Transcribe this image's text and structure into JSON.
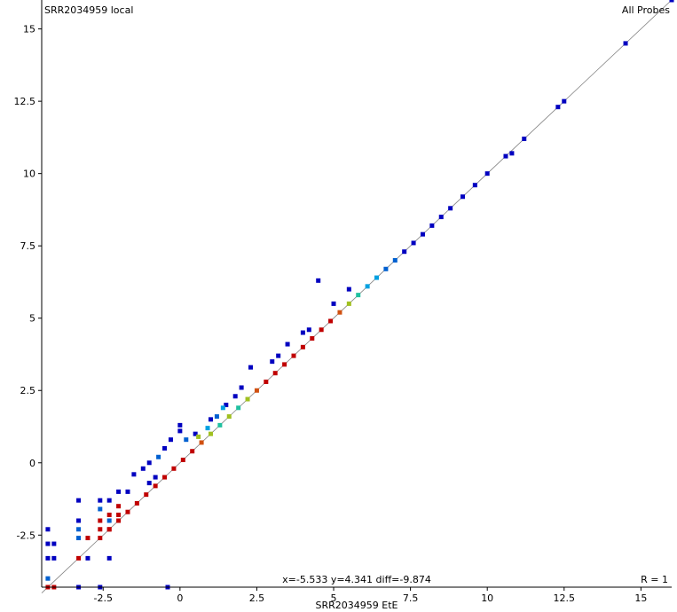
{
  "chart_data": {
    "type": "scatter",
    "title": "",
    "ylabel": "SRR2034959 local",
    "xlabel": "SRR2034959 EtE",
    "series_label": "All Probes",
    "r_label": "R = 1",
    "cursor_readout": "x=-5.533 y=4.341 diff=-9.874",
    "xlim": [
      -4.5,
      16
    ],
    "ylim": [
      -4.3,
      16
    ],
    "xticks": [
      -2.5,
      0,
      2.5,
      5,
      7.5,
      10,
      12.5,
      15
    ],
    "yticks": [
      -2.5,
      0,
      2.5,
      5,
      7.5,
      10,
      12.5,
      15
    ],
    "xtick_labels": [
      "-2.5",
      "0",
      "2.5",
      "5",
      "7.5",
      "10",
      "12.5",
      "15"
    ],
    "ytick_labels": [
      "-2.5",
      "0",
      "2.5",
      "5",
      "7.5",
      "10",
      "12.5",
      "15"
    ],
    "diagonal": [
      [
        -4.5,
        -4.5
      ],
      [
        16,
        16
      ]
    ],
    "density_colors": [
      "#0000c0",
      "#0060d0",
      "#00a0e0",
      "#20c0a0",
      "#a0c020",
      "#d05010",
      "#c00000"
    ],
    "points": [
      {
        "x": 16.0,
        "y": 16.0,
        "d": 0
      },
      {
        "x": 14.5,
        "y": 14.5,
        "d": 0
      },
      {
        "x": 12.5,
        "y": 12.5,
        "d": 0
      },
      {
        "x": 12.3,
        "y": 12.3,
        "d": 0
      },
      {
        "x": 11.2,
        "y": 11.2,
        "d": 0
      },
      {
        "x": 10.8,
        "y": 10.7,
        "d": 0
      },
      {
        "x": 10.6,
        "y": 10.6,
        "d": 0
      },
      {
        "x": 10.0,
        "y": 10.0,
        "d": 0
      },
      {
        "x": 9.6,
        "y": 9.6,
        "d": 0
      },
      {
        "x": 9.2,
        "y": 9.2,
        "d": 0
      },
      {
        "x": 8.8,
        "y": 8.8,
        "d": 0
      },
      {
        "x": 8.5,
        "y": 8.5,
        "d": 0
      },
      {
        "x": 8.2,
        "y": 8.2,
        "d": 0
      },
      {
        "x": 7.9,
        "y": 7.9,
        "d": 0
      },
      {
        "x": 7.6,
        "y": 7.6,
        "d": 0
      },
      {
        "x": 7.3,
        "y": 7.3,
        "d": 0
      },
      {
        "x": 7.0,
        "y": 7.0,
        "d": 1
      },
      {
        "x": 6.7,
        "y": 6.7,
        "d": 1
      },
      {
        "x": 6.4,
        "y": 6.4,
        "d": 2
      },
      {
        "x": 6.1,
        "y": 6.1,
        "d": 2
      },
      {
        "x": 5.8,
        "y": 5.8,
        "d": 3
      },
      {
        "x": 5.5,
        "y": 5.5,
        "d": 4
      },
      {
        "x": 5.2,
        "y": 5.2,
        "d": 5
      },
      {
        "x": 4.9,
        "y": 4.9,
        "d": 6
      },
      {
        "x": 4.6,
        "y": 4.6,
        "d": 6
      },
      {
        "x": 4.3,
        "y": 4.3,
        "d": 6
      },
      {
        "x": 4.0,
        "y": 4.0,
        "d": 6
      },
      {
        "x": 3.7,
        "y": 3.7,
        "d": 6
      },
      {
        "x": 3.4,
        "y": 3.4,
        "d": 6
      },
      {
        "x": 3.1,
        "y": 3.1,
        "d": 6
      },
      {
        "x": 2.8,
        "y": 2.8,
        "d": 6
      },
      {
        "x": 2.5,
        "y": 2.5,
        "d": 5
      },
      {
        "x": 2.2,
        "y": 2.2,
        "d": 4
      },
      {
        "x": 1.9,
        "y": 1.9,
        "d": 3
      },
      {
        "x": 1.6,
        "y": 1.6,
        "d": 4
      },
      {
        "x": 1.3,
        "y": 1.3,
        "d": 3
      },
      {
        "x": 1.0,
        "y": 1.0,
        "d": 4
      },
      {
        "x": 0.7,
        "y": 0.7,
        "d": 5
      },
      {
        "x": 0.4,
        "y": 0.4,
        "d": 6
      },
      {
        "x": 0.1,
        "y": 0.1,
        "d": 6
      },
      {
        "x": -0.2,
        "y": -0.2,
        "d": 6
      },
      {
        "x": -0.5,
        "y": -0.5,
        "d": 6
      },
      {
        "x": -0.8,
        "y": -0.8,
        "d": 6
      },
      {
        "x": -1.1,
        "y": -1.1,
        "d": 6
      },
      {
        "x": -1.4,
        "y": -1.4,
        "d": 6
      },
      {
        "x": -1.7,
        "y": -1.7,
        "d": 6
      },
      {
        "x": -2.0,
        "y": -2.0,
        "d": 6
      },
      {
        "x": -2.3,
        "y": -2.3,
        "d": 6
      },
      {
        "x": -3.3,
        "y": -3.3,
        "d": 6
      },
      {
        "x": -4.3,
        "y": -4.3,
        "d": 6
      },
      {
        "x": 4.5,
        "y": 6.3,
        "d": 0
      },
      {
        "x": 2.3,
        "y": 3.3,
        "d": 0
      },
      {
        "x": 5.0,
        "y": 5.5,
        "d": 0
      },
      {
        "x": 3.5,
        "y": 4.1,
        "d": 0
      },
      {
        "x": 4.0,
        "y": 4.5,
        "d": 0
      },
      {
        "x": 1.0,
        "y": 1.5,
        "d": 0
      },
      {
        "x": 1.5,
        "y": 2.0,
        "d": 0
      },
      {
        "x": 2.0,
        "y": 2.6,
        "d": 0
      },
      {
        "x": 3.0,
        "y": 3.5,
        "d": 0
      },
      {
        "x": 5.5,
        "y": 6.0,
        "d": 0
      },
      {
        "x": 0.0,
        "y": 1.3,
        "d": 0
      },
      {
        "x": 0.5,
        "y": 1.0,
        "d": 0
      },
      {
        "x": -0.5,
        "y": 0.5,
        "d": 0
      },
      {
        "x": -0.3,
        "y": 0.8,
        "d": 0
      },
      {
        "x": -1.0,
        "y": 0.0,
        "d": 0
      },
      {
        "x": -1.2,
        "y": -0.2,
        "d": 0
      },
      {
        "x": -0.7,
        "y": 0.2,
        "d": 1
      },
      {
        "x": 0.2,
        "y": 0.8,
        "d": 1
      },
      {
        "x": -1.5,
        "y": -0.4,
        "d": 0
      },
      {
        "x": -1.7,
        "y": -1.0,
        "d": 0
      },
      {
        "x": -2.0,
        "y": -1.0,
        "d": 0
      },
      {
        "x": -2.0,
        "y": -1.5,
        "d": 6
      },
      {
        "x": -2.0,
        "y": -1.8,
        "d": 6
      },
      {
        "x": -2.3,
        "y": -1.8,
        "d": 6
      },
      {
        "x": -2.3,
        "y": -1.3,
        "d": 0
      },
      {
        "x": -2.3,
        "y": -2.0,
        "d": 1
      },
      {
        "x": -2.3,
        "y": -2.3,
        "d": 6
      },
      {
        "x": -2.3,
        "y": -3.3,
        "d": 0
      },
      {
        "x": -2.6,
        "y": -1.3,
        "d": 0
      },
      {
        "x": -2.6,
        "y": -1.6,
        "d": 1
      },
      {
        "x": -2.6,
        "y": -2.0,
        "d": 6
      },
      {
        "x": -2.6,
        "y": -2.3,
        "d": 6
      },
      {
        "x": -2.6,
        "y": -2.6,
        "d": 6
      },
      {
        "x": -2.6,
        "y": -4.3,
        "d": 0
      },
      {
        "x": -3.3,
        "y": -1.3,
        "d": 0
      },
      {
        "x": -3.3,
        "y": -2.0,
        "d": 0
      },
      {
        "x": -3.3,
        "y": -2.3,
        "d": 1
      },
      {
        "x": -3.3,
        "y": -2.6,
        "d": 1
      },
      {
        "x": -3.3,
        "y": -4.3,
        "d": 0
      },
      {
        "x": -3.0,
        "y": -2.6,
        "d": 6
      },
      {
        "x": -3.0,
        "y": -3.3,
        "d": 0
      },
      {
        "x": -4.3,
        "y": -2.3,
        "d": 0
      },
      {
        "x": -4.3,
        "y": -2.8,
        "d": 0
      },
      {
        "x": -4.3,
        "y": -3.3,
        "d": 0
      },
      {
        "x": -4.3,
        "y": -4.0,
        "d": 1
      },
      {
        "x": -4.1,
        "y": -2.8,
        "d": 0
      },
      {
        "x": -4.1,
        "y": -3.3,
        "d": 0
      },
      {
        "x": -4.1,
        "y": -4.3,
        "d": 6
      },
      {
        "x": -0.4,
        "y": -4.3,
        "d": 0
      },
      {
        "x": 0.0,
        "y": 1.1,
        "d": 0
      },
      {
        "x": -0.8,
        "y": -0.5,
        "d": 0
      },
      {
        "x": -1.0,
        "y": -0.7,
        "d": 0
      },
      {
        "x": 1.2,
        "y": 1.6,
        "d": 1
      },
      {
        "x": 1.4,
        "y": 1.9,
        "d": 2
      },
      {
        "x": 1.8,
        "y": 2.3,
        "d": 0
      },
      {
        "x": 3.2,
        "y": 3.7,
        "d": 0
      },
      {
        "x": 4.2,
        "y": 4.6,
        "d": 0
      },
      {
        "x": 0.6,
        "y": 0.9,
        "d": 4
      },
      {
        "x": 0.9,
        "y": 1.2,
        "d": 2
      }
    ]
  }
}
